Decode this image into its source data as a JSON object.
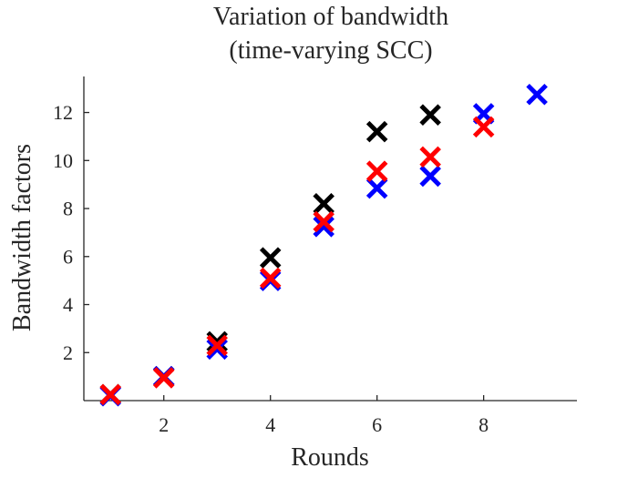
{
  "chart_data": {
    "type": "scatter",
    "title": [
      "Variation of bandwidth",
      "(time-varying SCC)"
    ],
    "xlabel": "Rounds",
    "ylabel": "Bandwidth factors",
    "xlim": [
      0.5,
      9.75
    ],
    "ylim": [
      0,
      13.5
    ],
    "xticks": [
      2,
      4,
      6,
      8
    ],
    "yticks": [
      2,
      4,
      6,
      8,
      10,
      12
    ],
    "grid": false,
    "legend": "none",
    "marker": "x",
    "series": [
      {
        "color": "#000000",
        "x": [
          1,
          2,
          3,
          4,
          5,
          6,
          7
        ],
        "y": [
          0.25,
          1.0,
          2.45,
          5.95,
          8.2,
          11.2,
          11.9
        ]
      },
      {
        "color": "#0000ff",
        "x": [
          1,
          2,
          3,
          4,
          5,
          6,
          7,
          8,
          9
        ],
        "y": [
          0.2,
          1.0,
          2.15,
          5.0,
          7.25,
          8.85,
          9.35,
          11.95,
          12.75
        ]
      },
      {
        "color": "#ff0000",
        "x": [
          1,
          2,
          3,
          4,
          5,
          6,
          7,
          8
        ],
        "y": [
          0.25,
          0.95,
          2.3,
          5.1,
          7.45,
          9.55,
          10.15,
          11.4
        ]
      }
    ]
  }
}
